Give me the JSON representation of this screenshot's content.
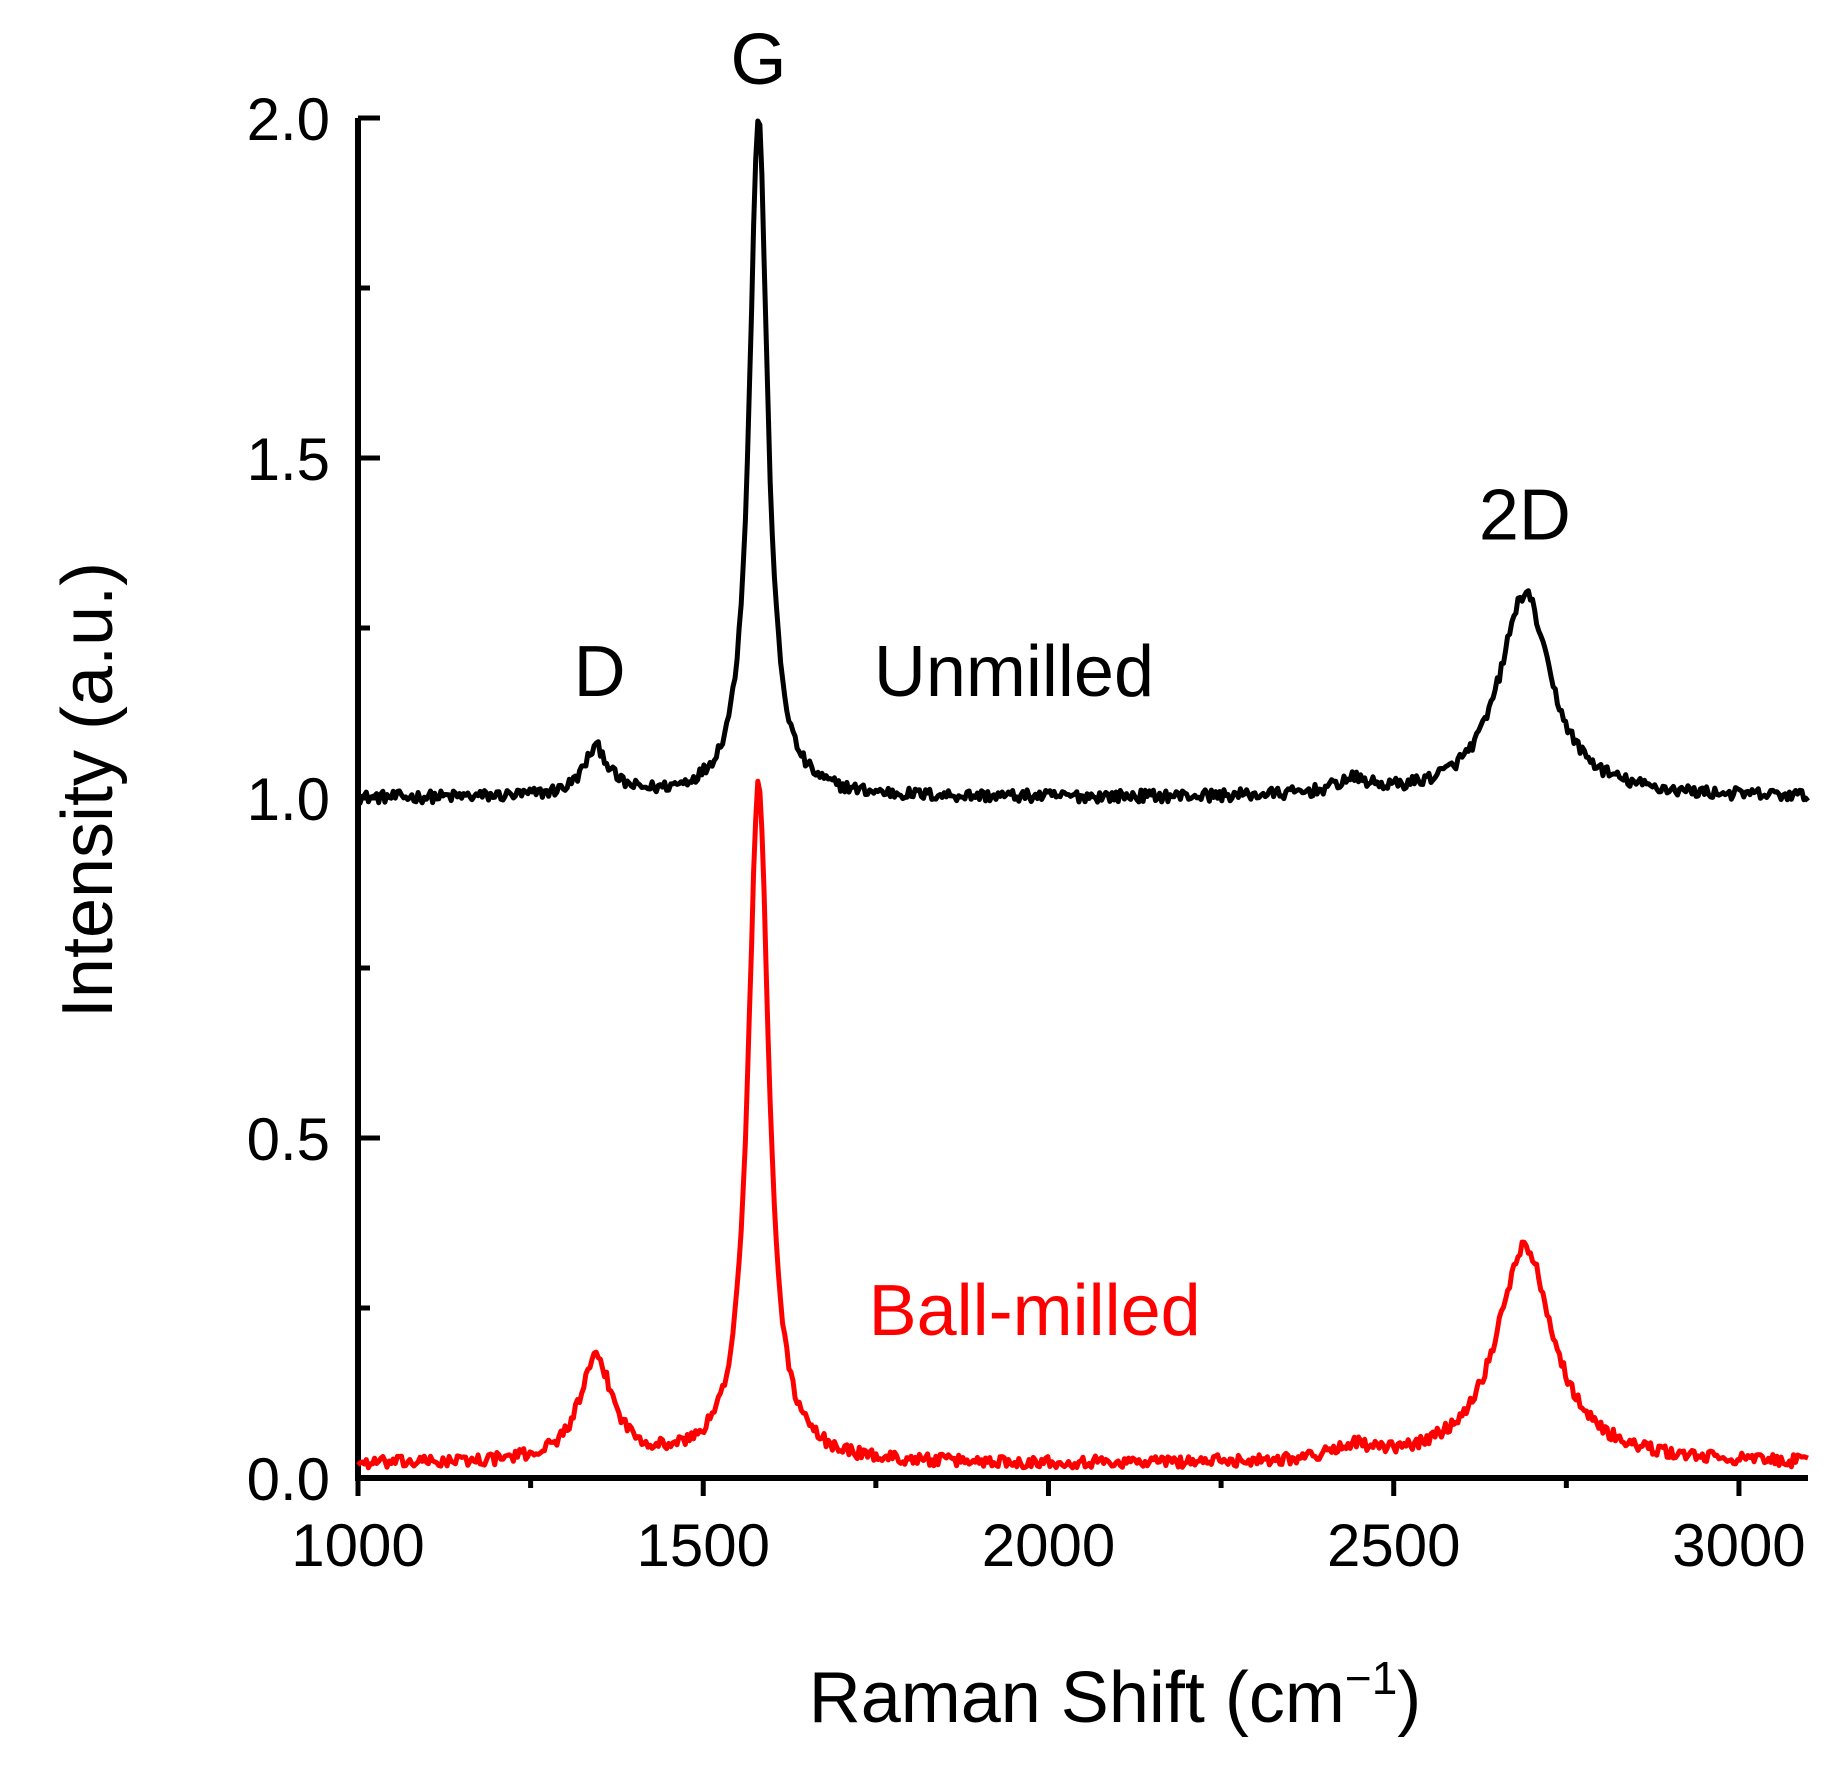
{
  "chart_data": {
    "type": "line",
    "title": "",
    "xlabel": "Raman Shift (cm",
    "xlabel_sup": "−1",
    "xlabel_end": ")",
    "ylabel": "Intensity (a.u.)",
    "xlim": [
      1000,
      3100
    ],
    "ylim": [
      0.0,
      2.0
    ],
    "x_ticks": [
      1000,
      1500,
      2000,
      2500,
      3000
    ],
    "x_minor_ticks": [
      1250,
      1750,
      2250,
      2750
    ],
    "y_ticks": [
      0.0,
      0.5,
      1.0,
      1.5,
      2.0
    ],
    "y_tick_labels": [
      "0.0",
      "0.5",
      "1.0",
      "1.5",
      "2.0"
    ],
    "y_minor_ticks": [
      0.25,
      0.75,
      1.25,
      1.75
    ],
    "x_tick_labels": [
      "1000",
      "1500",
      "2000",
      "2500",
      "3000"
    ],
    "grid": false,
    "peak_labels": [
      {
        "text": "D",
        "x": 1350,
        "y": 1.15
      },
      {
        "text": "G",
        "x": 1580,
        "y": 2.05
      },
      {
        "text": "2D",
        "x": 2690,
        "y": 1.38
      }
    ],
    "series": [
      {
        "name": "Unmilled",
        "color": "#000000",
        "label_pos": {
          "x": 1950,
          "y": 1.15
        },
        "baseline": 1.0,
        "peaks": [
          {
            "center": 1345,
            "height": 0.07,
            "width": 22
          },
          {
            "center": 1580,
            "height": 1.0,
            "width": 16
          },
          {
            "center": 2690,
            "height": 0.3,
            "width": 45
          },
          {
            "center": 2440,
            "height": 0.02,
            "width": 30
          }
        ]
      },
      {
        "name": "Ball-milled",
        "color": "#ff0000",
        "label_pos": {
          "x": 1980,
          "y": 0.21
        },
        "baseline": 0.02,
        "peaks": [
          {
            "center": 1345,
            "height": 0.15,
            "width": 30
          },
          {
            "center": 1580,
            "height": 1.0,
            "width": 18
          },
          {
            "center": 2690,
            "height": 0.32,
            "width": 50
          },
          {
            "center": 2440,
            "height": 0.02,
            "width": 30
          }
        ]
      }
    ]
  }
}
